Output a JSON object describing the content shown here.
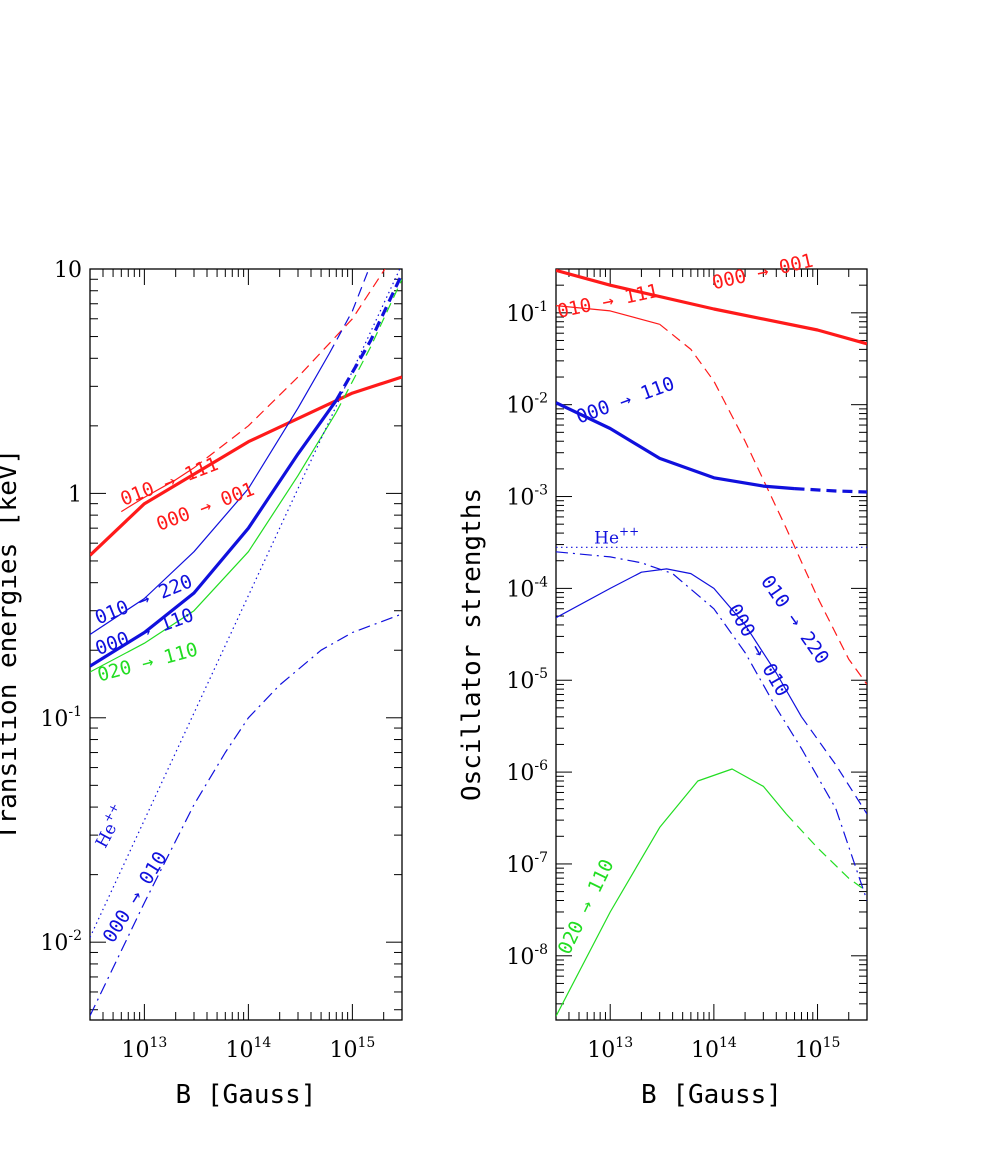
{
  "colors": {
    "red": "#ff1a1a",
    "blue": "#1010dd",
    "green": "#22dd22",
    "black": "#000000"
  },
  "chart_data": [
    {
      "type": "line",
      "xscale": "log",
      "yscale": "log",
      "xlim": [
        3000000000000.0,
        3000000000000000.0
      ],
      "ylim": [
        0.0045,
        10
      ],
      "xlabel": "B [Gauss]",
      "ylabel": "Transition energies [keV]",
      "xticks": [
        {
          "mant": "10",
          "exp": "13"
        },
        {
          "mant": "10",
          "exp": "14"
        },
        {
          "mant": "10",
          "exp": "15"
        }
      ],
      "yticks": [
        {
          "value": 10,
          "mant": "10",
          "exp": ""
        },
        {
          "value": 1,
          "mant": "1",
          "exp": ""
        },
        {
          "value": 0.1,
          "mant": "10",
          "exp": "-1"
        },
        {
          "value": 0.01,
          "mant": "10",
          "exp": "-2"
        }
      ],
      "series": [
        {
          "color": "red",
          "width": 3.2,
          "dash": "solid",
          "points": [
            [
              3000000000000.0,
              0.53
            ],
            [
              10000000000000.0,
              0.9
            ],
            [
              100000000000000.0,
              1.7
            ],
            [
              1000000000000000.0,
              2.8
            ],
            [
              3000000000000000.0,
              3.3
            ]
          ]
        },
        {
          "color": "red",
          "width": 1.2,
          "dash": "solid",
          "points": [
            [
              6000000000000.0,
              0.83
            ],
            [
              10000000000000.0,
              0.96
            ],
            [
              20000000000000.0,
              1.15
            ],
            [
              30000000000000.0,
              1.3
            ]
          ]
        },
        {
          "color": "red",
          "width": 1.2,
          "dash": "dashed",
          "points": [
            [
              30000000000000.0,
              1.3
            ],
            [
              100000000000000.0,
              2.0
            ],
            [
              300000000000000.0,
              3.3
            ],
            [
              1000000000000000.0,
              6.0
            ],
            [
              2200000000000000.0,
              10.5
            ]
          ]
        },
        {
          "color": "blue",
          "width": 1.2,
          "dash": "solid",
          "points": [
            [
              3000000000000.0,
              0.235
            ],
            [
              10000000000000.0,
              0.34
            ],
            [
              30000000000000.0,
              0.55
            ],
            [
              100000000000000.0,
              1.05
            ],
            [
              300000000000000.0,
              2.4
            ],
            [
              600000000000000.0,
              4.2
            ]
          ]
        },
        {
          "color": "blue",
          "width": 1.2,
          "dash": "dashed",
          "points": [
            [
              600000000000000.0,
              4.2
            ],
            [
              1000000000000000.0,
              6.5
            ],
            [
              1500000000000000.0,
              10.5
            ]
          ]
        },
        {
          "color": "blue",
          "width": 3.2,
          "dash": "solid",
          "points": [
            [
              3000000000000.0,
              0.17
            ],
            [
              10000000000000.0,
              0.24
            ],
            [
              30000000000000.0,
              0.36
            ],
            [
              100000000000000.0,
              0.7
            ],
            [
              300000000000000.0,
              1.5
            ],
            [
              700000000000000.0,
              2.6
            ]
          ]
        },
        {
          "color": "blue",
          "width": 3.2,
          "dash": "dashed",
          "points": [
            [
              700000000000000.0,
              2.6
            ],
            [
              1500000000000000.0,
              4.8
            ],
            [
              3000000000000000.0,
              9.5
            ]
          ]
        },
        {
          "color": "green",
          "width": 1.2,
          "dash": "solid",
          "points": [
            [
              3000000000000.0,
              0.16
            ],
            [
              10000000000000.0,
              0.215
            ],
            [
              30000000000000.0,
              0.3
            ],
            [
              100000000000000.0,
              0.55
            ],
            [
              300000000000000.0,
              1.2
            ],
            [
              700000000000000.0,
              2.3
            ]
          ]
        },
        {
          "color": "green",
          "width": 1.2,
          "dash": "dashed",
          "points": [
            [
              700000000000000.0,
              2.3
            ],
            [
              1500000000000000.0,
              4.5
            ],
            [
              3000000000000000.0,
              9.0
            ]
          ]
        },
        {
          "color": "blue",
          "width": 1.2,
          "dash": "dotted",
          "points": [
            [
              3000000000000.0,
              0.0105
            ],
            [
              3000000000000000.0,
              10.5
            ]
          ]
        },
        {
          "color": "blue",
          "width": 1.2,
          "dash": "dashdot",
          "points": [
            [
              3000000000000.0,
              0.0047
            ],
            [
              10000000000000.0,
              0.015
            ],
            [
              30000000000000.0,
              0.041
            ],
            [
              60000000000000.0,
              0.07
            ],
            [
              100000000000000.0,
              0.1
            ],
            [
              200000000000000.0,
              0.14
            ],
            [
              500000000000000.0,
              0.2
            ],
            [
              1000000000000000.0,
              0.24
            ],
            [
              3000000000000000.0,
              0.29
            ]
          ]
        }
      ],
      "annotations": [
        {
          "text": "010 → 111",
          "color": "red",
          "x": 6300000000000.0,
          "y": 0.88,
          "angle": -21
        },
        {
          "text": "000 → 001",
          "color": "red",
          "x": 14000000000000.0,
          "y": 0.68,
          "angle": -21
        },
        {
          "text": "010 → 220",
          "color": "blue",
          "x": 3600000000000.0,
          "y": 0.26,
          "angle": -22
        },
        {
          "text": "000 → 110",
          "color": "blue",
          "x": 3600000000000.0,
          "y": 0.19,
          "angle": -20
        },
        {
          "text": "020 → 110",
          "color": "green",
          "x": 3700000000000.0,
          "y": 0.145,
          "angle": -15
        },
        {
          "text": "000 → 010",
          "color": "blue",
          "x": 5000000000000.0,
          "y": 0.0098,
          "angle": -58
        },
        {
          "text": "He",
          "sup": "++",
          "color": "blue",
          "x": 4200000000000.0,
          "y": 0.026,
          "angle": -62,
          "he": true
        }
      ]
    },
    {
      "type": "line",
      "xscale": "log",
      "yscale": "log",
      "xlim": [
        3000000000000.0,
        3000000000000000.0
      ],
      "ylim": [
        2e-09,
        0.3
      ],
      "xlabel": "B [Gauss]",
      "ylabel": "Oscillator strengths",
      "xticks": [
        {
          "mant": "10",
          "exp": "13"
        },
        {
          "mant": "10",
          "exp": "14"
        },
        {
          "mant": "10",
          "exp": "15"
        }
      ],
      "yticks": [
        {
          "value": 0.1,
          "mant": "10",
          "exp": "-1"
        },
        {
          "value": 0.01,
          "mant": "10",
          "exp": "-2"
        },
        {
          "value": 0.001,
          "mant": "10",
          "exp": "-3"
        },
        {
          "value": 0.0001,
          "mant": "10",
          "exp": "-4"
        },
        {
          "value": 1e-05,
          "mant": "10",
          "exp": "-5"
        },
        {
          "value": 1e-06,
          "mant": "10",
          "exp": "-6"
        },
        {
          "value": 1e-07,
          "mant": "10",
          "exp": "-7"
        },
        {
          "value": 1e-08,
          "mant": "10",
          "exp": "-8"
        }
      ],
      "series": [
        {
          "color": "red",
          "width": 3.2,
          "dash": "solid",
          "points": [
            [
              3000000000000.0,
              0.29
            ],
            [
              10000000000000.0,
              0.2
            ],
            [
              100000000000000.0,
              0.11
            ],
            [
              1000000000000000.0,
              0.065
            ],
            [
              3000000000000000.0,
              0.046
            ]
          ]
        },
        {
          "color": "red",
          "width": 1.2,
          "dash": "solid",
          "points": [
            [
              3000000000000.0,
              0.12
            ],
            [
              10000000000000.0,
              0.105
            ],
            [
              30000000000000.0,
              0.075
            ]
          ]
        },
        {
          "color": "red",
          "width": 1.2,
          "dash": "dashed",
          "points": [
            [
              30000000000000.0,
              0.075
            ],
            [
              60000000000000.0,
              0.04
            ],
            [
              100000000000000.0,
              0.018
            ],
            [
              200000000000000.0,
              0.004
            ],
            [
              500000000000000.0,
              0.00045
            ],
            [
              1000000000000000.0,
              8e-05
            ],
            [
              2000000000000000.0,
              1.7e-05
            ],
            [
              3000000000000000.0,
              9e-06
            ]
          ]
        },
        {
          "color": "blue",
          "width": 3.2,
          "dash": "solid",
          "points": [
            [
              3000000000000.0,
              0.0105
            ],
            [
              10000000000000.0,
              0.0055
            ],
            [
              30000000000000.0,
              0.0026
            ],
            [
              100000000000000.0,
              0.0016
            ],
            [
              300000000000000.0,
              0.0013
            ],
            [
              600000000000000.0,
              0.00122
            ]
          ]
        },
        {
          "color": "blue",
          "width": 3.2,
          "dash": "dashed",
          "points": [
            [
              600000000000000.0,
              0.00122
            ],
            [
              1500000000000000.0,
              0.00115
            ],
            [
              3000000000000000.0,
              0.00112
            ]
          ]
        },
        {
          "color": "blue",
          "width": 1.2,
          "dash": "dotted",
          "points": [
            [
              3000000000000.0,
              0.00028
            ],
            [
              3000000000000000.0,
              0.00028
            ]
          ]
        },
        {
          "color": "blue",
          "width": 1.2,
          "dash": "solid",
          "points": [
            [
              3000000000000.0,
              4.8e-05
            ],
            [
              10000000000000.0,
              0.0001
            ],
            [
              20000000000000.0,
              0.00015
            ],
            [
              35000000000000.0,
              0.000163
            ],
            [
              60000000000000.0,
              0.000145
            ],
            [
              100000000000000.0,
              0.0001
            ],
            [
              200000000000000.0,
              4e-05
            ],
            [
              400000000000000.0,
              1.2e-05
            ],
            [
              700000000000000.0,
              4e-06
            ]
          ]
        },
        {
          "color": "blue",
          "width": 1.2,
          "dash": "dashed",
          "points": [
            [
              700000000000000.0,
              4e-06
            ],
            [
              1500000000000000.0,
              1.2e-06
            ],
            [
              3000000000000000.0,
              3.5e-07
            ]
          ]
        },
        {
          "color": "blue",
          "width": 1.2,
          "dash": "dashdot",
          "points": [
            [
              3000000000000.0,
              0.00025
            ],
            [
              10000000000000.0,
              0.00022
            ],
            [
              20000000000000.0,
              0.00019
            ],
            [
              40000000000000.0,
              0.000145
            ],
            [
              100000000000000.0,
              6e-05
            ],
            [
              200000000000000.0,
              2e-05
            ],
            [
              400000000000000.0,
              5e-06
            ],
            [
              700000000000000.0,
              1.8e-06
            ],
            [
              1500000000000000.0,
              4e-07
            ],
            [
              3000000000000000.0,
              4e-08
            ]
          ]
        },
        {
          "color": "green",
          "width": 1.2,
          "dash": "solid",
          "points": [
            [
              3000000000000.0,
              2.2e-09
            ],
            [
              10000000000000.0,
              3e-08
            ],
            [
              30000000000000.0,
              2.5e-07
            ],
            [
              70000000000000.0,
              8e-07
            ],
            [
              150000000000000.0,
              1.08e-06
            ],
            [
              300000000000000.0,
              7e-07
            ],
            [
              500000000000000.0,
              3.5e-07
            ]
          ]
        },
        {
          "color": "green",
          "width": 1.2,
          "dash": "dashed",
          "points": [
            [
              500000000000000.0,
              3.5e-07
            ],
            [
              1000000000000000.0,
              1.5e-07
            ],
            [
              2000000000000000.0,
              7e-08
            ],
            [
              3000000000000000.0,
              5e-08
            ]
          ]
        }
      ],
      "annotations": [
        {
          "text": "000 → 001",
          "color": "red",
          "x": 100000000000000.0,
          "y": 0.18,
          "angle": -13
        },
        {
          "text": "010 → 111",
          "color": "red",
          "x": 3200000000000.0,
          "y": 0.088,
          "angle": -12
        },
        {
          "text": "000 → 110",
          "color": "blue",
          "x": 5000000000000.0,
          "y": 0.0062,
          "angle": -20
        },
        {
          "text": "He",
          "sup": "++",
          "color": "blue",
          "x": 7000000000000.0,
          "y": 0.00031,
          "angle": 0,
          "he": true
        },
        {
          "text": "010 → 220",
          "color": "blue",
          "x": 280000000000000.0,
          "y": 0.00012,
          "angle": 55
        },
        {
          "text": "000 → 010",
          "color": "blue",
          "x": 135000000000000.0,
          "y": 6e-05,
          "angle": 60
        },
        {
          "text": "020 → 110",
          "color": "green",
          "x": 4000000000000.0,
          "y": 1e-08,
          "angle": -64
        }
      ]
    }
  ]
}
